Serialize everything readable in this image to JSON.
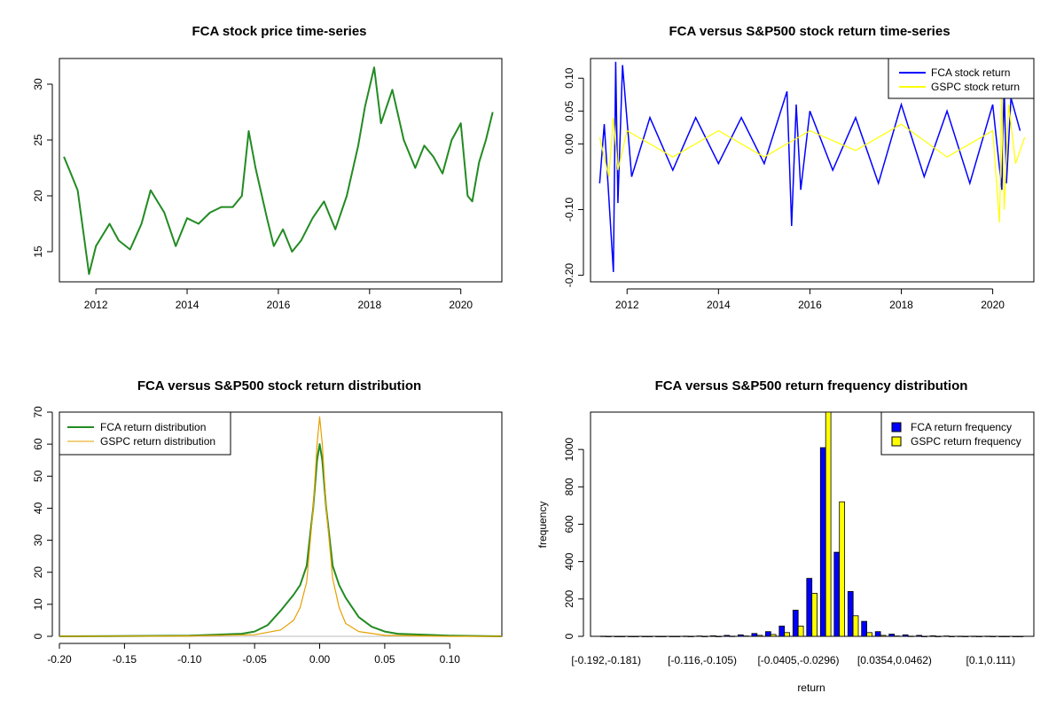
{
  "colors": {
    "fca_price": "#228B22",
    "fca_return": "#0000FF",
    "gspc_return": "#FFFF00",
    "fca_density": "#228B22",
    "gspc_density": "#E6A000",
    "fca_bar": "#0000FF",
    "gspc_bar": "#FFFF00"
  },
  "chart_data": [
    {
      "type": "line",
      "title": "FCA stock price time-series",
      "xlabel": "",
      "ylabel": "",
      "xlim": [
        2011.2,
        2020.9
      ],
      "ylim": [
        12.3,
        32.3
      ],
      "xticks": [
        2012,
        2014,
        2016,
        2018,
        2020
      ],
      "yticks": [
        15,
        20,
        25,
        30
      ],
      "grid": false,
      "series": [
        {
          "x": [
            2011.3,
            2011.45,
            2011.6,
            2011.75,
            2011.85,
            2012.0,
            2012.3,
            2012.5,
            2012.75,
            2013.0,
            2013.2,
            2013.5,
            2013.75,
            2014.0,
            2014.25,
            2014.5,
            2014.75,
            2015.0,
            2015.2,
            2015.35,
            2015.5,
            2015.75,
            2015.9,
            2016.1,
            2016.3,
            2016.5,
            2016.75,
            2017.0,
            2017.25,
            2017.5,
            2017.75,
            2017.9,
            2018.1,
            2018.25,
            2018.5,
            2018.75,
            2019.0,
            2019.2,
            2019.4,
            2019.6,
            2019.8,
            2020.0,
            2020.15,
            2020.25,
            2020.4,
            2020.55,
            2020.7
          ],
          "values": [
            23.5,
            22.0,
            20.5,
            16.0,
            13.0,
            15.5,
            17.5,
            16.0,
            15.2,
            17.5,
            20.5,
            18.5,
            15.5,
            18.0,
            17.5,
            18.5,
            19.0,
            19.0,
            20.0,
            25.8,
            22.5,
            18.0,
            15.5,
            17.0,
            15.0,
            16.0,
            18.0,
            19.5,
            17.0,
            20.0,
            24.5,
            28.0,
            31.5,
            26.5,
            29.5,
            25.0,
            22.5,
            24.5,
            23.5,
            22.0,
            25.0,
            26.5,
            20.0,
            19.5,
            23.0,
            25.0,
            27.5
          ]
        }
      ]
    },
    {
      "type": "line",
      "title": "FCA versus S&P500 stock return time-series",
      "xlabel": "",
      "ylabel": "",
      "xlim": [
        2011.2,
        2020.9
      ],
      "ylim": [
        -0.21,
        0.13
      ],
      "xticks": [
        2012,
        2014,
        2016,
        2018,
        2020
      ],
      "yticks": [
        -0.2,
        -0.1,
        0.0,
        0.05,
        0.1
      ],
      "ytick_labels": [
        "-0.20",
        "-0.10",
        "0.00",
        "0.05",
        "0.10"
      ],
      "legend": "top-right",
      "series": [
        {
          "name": "FCA stock return",
          "x": [
            2011.4,
            2011.5,
            2011.6,
            2011.7,
            2011.75,
            2011.8,
            2011.9,
            2012.1,
            2012.5,
            2013.0,
            2013.5,
            2014.0,
            2014.5,
            2015.0,
            2015.5,
            2015.6,
            2015.7,
            2015.8,
            2016.0,
            2016.5,
            2017.0,
            2017.5,
            2018.0,
            2018.5,
            2019.0,
            2019.5,
            2020.0,
            2020.2,
            2020.25,
            2020.3,
            2020.4,
            2020.6
          ],
          "values": [
            -0.06,
            0.03,
            -0.08,
            -0.195,
            0.125,
            -0.09,
            0.12,
            -0.05,
            0.04,
            -0.04,
            0.04,
            -0.03,
            0.04,
            -0.03,
            0.08,
            -0.125,
            0.06,
            -0.07,
            0.05,
            -0.04,
            0.04,
            -0.06,
            0.06,
            -0.05,
            0.05,
            -0.06,
            0.06,
            -0.07,
            0.09,
            -0.06,
            0.07,
            0.02
          ]
        },
        {
          "name": "GSPC stock return",
          "x": [
            2011.4,
            2011.6,
            2011.7,
            2011.8,
            2012.0,
            2013.0,
            2014.0,
            2015.0,
            2016.0,
            2017.0,
            2018.0,
            2019.0,
            2020.0,
            2020.15,
            2020.2,
            2020.25,
            2020.35,
            2020.5,
            2020.7
          ],
          "values": [
            0.01,
            -0.05,
            0.04,
            -0.04,
            0.02,
            -0.02,
            0.02,
            -0.02,
            0.02,
            -0.01,
            0.03,
            -0.02,
            0.02,
            -0.12,
            0.08,
            -0.1,
            0.06,
            -0.03,
            0.01
          ]
        }
      ]
    },
    {
      "type": "line",
      "title": "FCA versus S&P500 stock return distribution",
      "xlabel": "",
      "ylabel": "",
      "xlim": [
        -0.2,
        0.14
      ],
      "ylim": [
        0,
        70
      ],
      "xticks": [
        -0.2,
        -0.15,
        -0.1,
        -0.05,
        0.0,
        0.05,
        0.1
      ],
      "xtick_labels": [
        "-0.20",
        "-0.15",
        "-0.10",
        "-0.05",
        "0.00",
        "0.05",
        "0.10"
      ],
      "yticks": [
        0,
        10,
        20,
        30,
        40,
        50,
        60,
        70
      ],
      "legend": "top-left",
      "series": [
        {
          "name": "FCA return distribution",
          "x": [
            -0.2,
            -0.1,
            -0.06,
            -0.05,
            -0.04,
            -0.03,
            -0.02,
            -0.015,
            -0.01,
            -0.005,
            -0.002,
            0.0,
            0.002,
            0.005,
            0.01,
            0.015,
            0.02,
            0.03,
            0.04,
            0.05,
            0.06,
            0.1,
            0.14
          ],
          "values": [
            0,
            0.2,
            0.8,
            1.5,
            3.5,
            8,
            13,
            16,
            22,
            40,
            55,
            60,
            55,
            40,
            22,
            16,
            12,
            6,
            3,
            1.5,
            0.8,
            0.2,
            0
          ]
        },
        {
          "name": "GSPC return distribution",
          "x": [
            -0.2,
            -0.1,
            -0.05,
            -0.03,
            -0.02,
            -0.015,
            -0.01,
            -0.005,
            -0.002,
            0.0,
            0.002,
            0.005,
            0.01,
            0.015,
            0.02,
            0.03,
            0.05,
            0.1,
            0.14
          ],
          "values": [
            0,
            0.1,
            0.5,
            2,
            5,
            9,
            17,
            40,
            60,
            68.5,
            60,
            40,
            18,
            9,
            4,
            1.5,
            0.3,
            0,
            0
          ]
        }
      ]
    },
    {
      "type": "bar",
      "title": "FCA versus S&P500 return frequency distribution",
      "xlabel": "return",
      "ylabel": "frequency",
      "ylim": [
        0,
        1200
      ],
      "yticks": [
        0,
        200,
        400,
        600,
        800,
        1000
      ],
      "legend": "top-right",
      "categories": [
        "[-0.192,-0.181)",
        "",
        "",
        "",
        "",
        "",
        "",
        "[-0.116,-0.105)",
        "",
        "",
        "",
        "",
        "",
        "",
        "[-0.0405,-0.0296)",
        "",
        "",
        "",
        "",
        "",
        "",
        "[0.0354,0.0462)",
        "",
        "",
        "",
        "",
        "",
        "",
        "[0.1,0.111)",
        "",
        ""
      ],
      "series": [
        {
          "name": "FCA return frequency",
          "values": [
            1,
            0,
            0,
            0,
            0,
            0,
            1,
            2,
            3,
            5,
            8,
            15,
            25,
            55,
            140,
            310,
            1010,
            450,
            240,
            80,
            25,
            12,
            8,
            5,
            3,
            2,
            1,
            1,
            1,
            0,
            0
          ]
        },
        {
          "name": "GSPC return frequency",
          "values": [
            0,
            0,
            0,
            0,
            0,
            0,
            0,
            0,
            0,
            1,
            2,
            5,
            10,
            20,
            55,
            230,
            1220,
            720,
            110,
            20,
            5,
            2,
            1,
            0,
            0,
            0,
            0,
            0,
            0,
            0,
            0
          ]
        }
      ]
    }
  ]
}
